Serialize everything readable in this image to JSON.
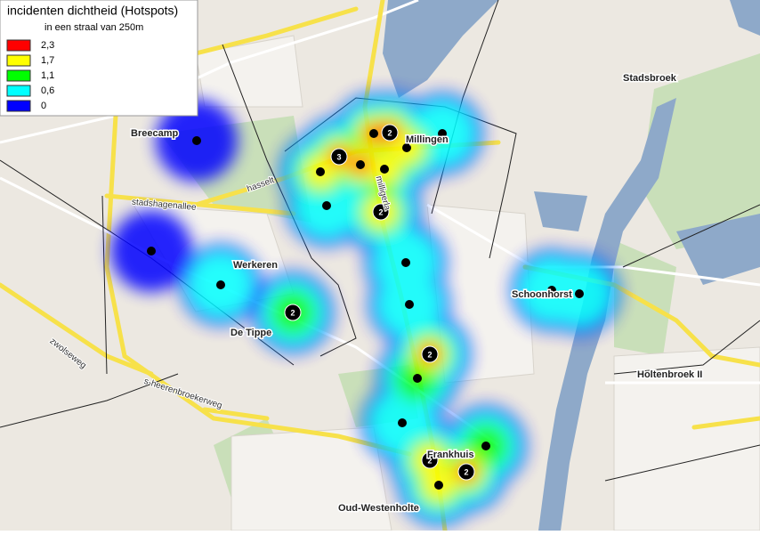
{
  "legend": {
    "title": "incidenten dichtheid (Hotspots)",
    "subtitle": "in een straal van 250m",
    "items": [
      {
        "label": "2,3",
        "color": "#ff0000"
      },
      {
        "label": "1,7",
        "color": "#ffff00"
      },
      {
        "label": "1,1",
        "color": "#00ff00"
      },
      {
        "label": "0,6",
        "color": "#00ffff"
      },
      {
        "label": "0",
        "color": "#0000ff"
      }
    ]
  },
  "places": [
    "Breecamp",
    "Millingen",
    "Stadsbroek",
    "Werkeren",
    "De Tippe",
    "Schoonhorst",
    "Holtenbroek II",
    "Frankhuis",
    "Oud-Westenholte"
  ],
  "streets": [
    "hasselt",
    "stadshagenallee",
    "milligerla",
    "zwolseweg",
    "s-heerenbroekerweg"
  ],
  "cluster_labels": [
    "3",
    "2",
    "2",
    "2",
    "2",
    "2",
    "2"
  ]
}
